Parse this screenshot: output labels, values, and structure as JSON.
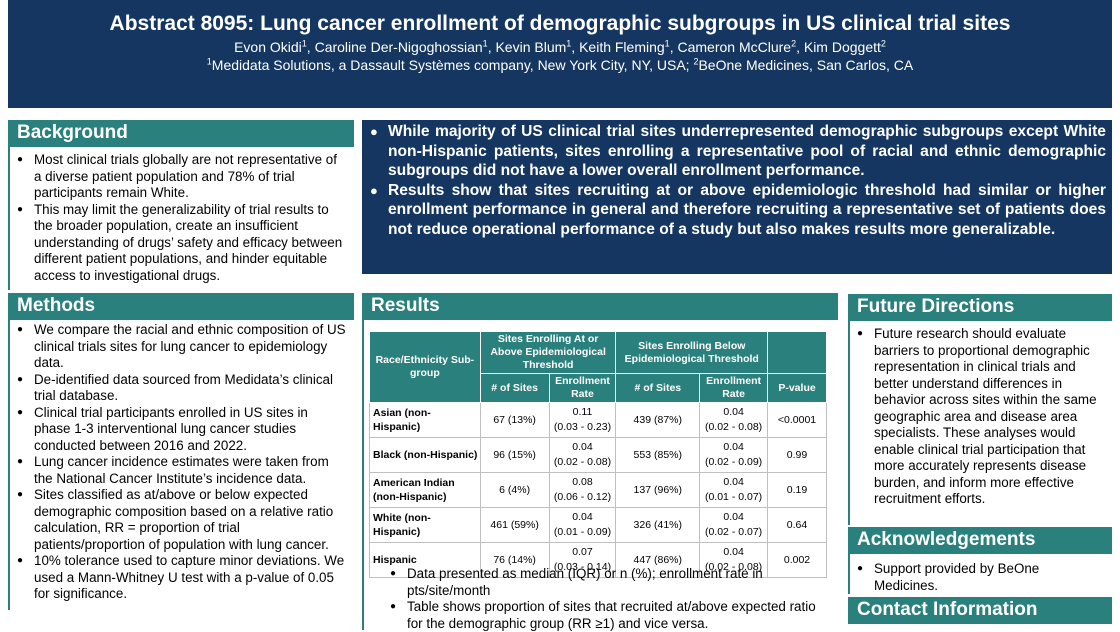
{
  "header": {
    "title": "Abstract 8095: Lung cancer enrollment of demographic subgroups in US clinical trial sites",
    "authors": [
      {
        "name": "Evon Okidi",
        "sup": "1"
      },
      {
        "name": "Caroline Der-Nigoghossian",
        "sup": "1"
      },
      {
        "name": "Kevin Blum",
        "sup": "1"
      },
      {
        "name": "Keith Fleming",
        "sup": "1"
      },
      {
        "name": "Cameron McClure",
        "sup": "2"
      },
      {
        "name": "Kim Doggett",
        "sup": "2"
      }
    ],
    "affiliations": [
      {
        "sup": "1",
        "text": "Medidata Solutions, a Dassault Systèmes company, New York City, NY, USA; "
      },
      {
        "sup": "2",
        "text": "BeOne Medicines, San Carlos, CA"
      }
    ]
  },
  "background": {
    "heading": "Background",
    "bullets": [
      "Most clinical trials globally are not representative of a diverse patient population and 78% of trial participants remain White.",
      "This may limit the generalizability of trial results to the broader population, create an insufficient understanding of drugs’ safety and efficacy between different patient populations, and hinder equitable access to investigational drugs."
    ]
  },
  "key_findings": [
    "While majority of US clinical trial sites underrepresented  demographic subgroups except White non-Hispanic patients, sites enrolling a representative pool of racial and ethnic demographic subgroups did not have a lower overall enrollment performance.",
    "Results show that sites recruiting at or above epidemiologic threshold had similar or higher enrollment performance in general and therefore recruiting a representative set of patients does not reduce operational performance of a study but also makes results more generalizable."
  ],
  "methods": {
    "heading": "Methods",
    "bullets": [
      "We compare the racial and ethnic composition of US clinical trials sites for lung cancer to epidemiology data.",
      "De-identified data sourced from Medidata’s clinical trial database.",
      "Clinical trial participants enrolled in US sites in phase 1-3 interventional lung cancer studies conducted between 2016 and 2022.",
      "Lung cancer incidence estimates were taken from the National Cancer Institute’s incidence data.",
      "Sites classified as at/above or below expected demographic composition based on a relative ratio calculation, RR = proportion of trial patients/proportion of population with lung cancer.",
      "10% tolerance used to capture minor deviations. We used a Mann-Whitney U test with a p-value of 0.05 for significance."
    ]
  },
  "results": {
    "heading": "Results",
    "table": {
      "col_subgroup": "Race/Ethnicity Sub-group",
      "group_at": "Sites Enrolling At or Above Epidemiological Threshold",
      "group_below": "Sites Enrolling Below Epidemiological Threshold",
      "col_sites": "# of Sites",
      "col_rate": "Enrollment Rate",
      "col_p": "P-value",
      "rows": [
        {
          "group": "Asian (non-Hispanic)",
          "at_sites": "67 (13%)",
          "at_rate": "0.11",
          "at_iqr": "(0.03 - 0.23)",
          "below_sites": "439 (87%)",
          "below_rate": "0.04",
          "below_iqr": "(0.02 - 0.08)",
          "p": "<0.0001"
        },
        {
          "group": "Black (non-Hispanic)",
          "at_sites": "96 (15%)",
          "at_rate": "0.04",
          "at_iqr": "(0.02 - 0.08)",
          "below_sites": "553 (85%)",
          "below_rate": "0.04",
          "below_iqr": "(0.02 - 0.09)",
          "p": "0.99"
        },
        {
          "group": "American Indian (non-Hispanic)",
          "at_sites": "6 (4%)",
          "at_rate": "0.08",
          "at_iqr": "(0.06 - 0.12)",
          "below_sites": "137 (96%)",
          "below_rate": "0.04",
          "below_iqr": "(0.01 - 0.07)",
          "p": "0.19"
        },
        {
          "group": "White (non-Hispanic)",
          "at_sites": "461 (59%)",
          "at_rate": "0.04",
          "at_iqr": "(0.01 - 0.09)",
          "below_sites": "326 (41%)",
          "below_rate": "0.04",
          "below_iqr": "(0.02 - 0.07)",
          "p": "0.64"
        },
        {
          "group": "Hispanic",
          "at_sites": "76 (14%)",
          "at_rate": "0.07",
          "at_iqr": "(0.03 - 0.14)",
          "below_sites": "447 (86%)",
          "below_rate": "0.04",
          "below_iqr": "(0.02 - 0.08)",
          "p": "0.002"
        }
      ]
    },
    "notes": [
      "Data presented as median (IQR) or n (%); enrollment rate in pts/site/month",
      "Table shows proportion of sites that recruited at/above expected ratio for the demographic group (RR ≥1) and vice versa."
    ]
  },
  "future": {
    "heading": "Future Directions",
    "bullets": [
      "Future research should evaluate barriers to proportional demographic representation in clinical trials and better understand differences in behavior across sites within the same geographic area and disease area specialists. These analyses would enable clinical trial participation that more accurately represents disease burden, and inform more effective recruitment efforts."
    ]
  },
  "acknowledgements": {
    "heading": "Acknowledgements",
    "bullets": [
      "Support provided by BeOne Medicines."
    ]
  },
  "contact": {
    "heading": "Contact Information"
  },
  "colors": {
    "navy": "#143660",
    "teal": "#2a807c"
  }
}
